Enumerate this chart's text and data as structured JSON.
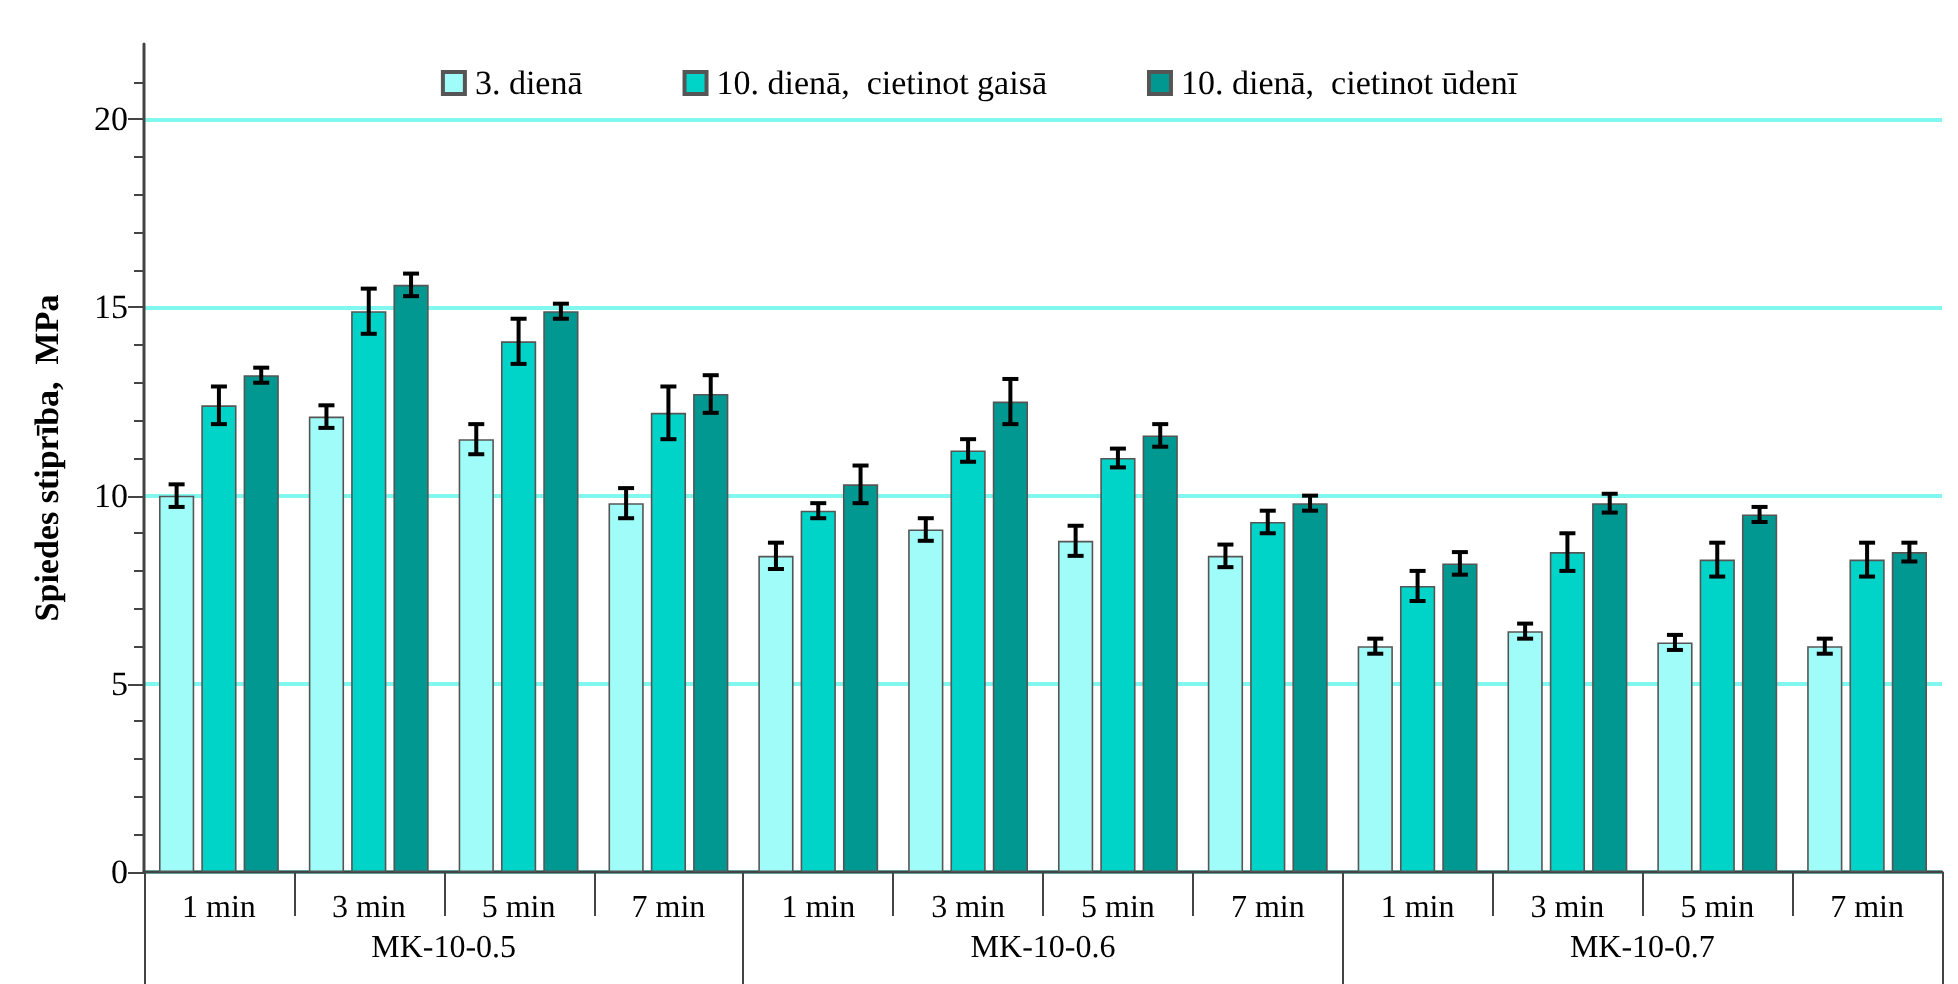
{
  "chart_data": {
    "type": "bar",
    "ylabel": "Spiedes stiprība,  MPa",
    "categories": [
      "1 min",
      "3 min",
      "5 min",
      "7 min",
      "1 min",
      "3 min",
      "5 min",
      "7 min",
      "1 min",
      "3 min",
      "5 min",
      "7 min"
    ],
    "annotations": [
      "MK-10-0.5",
      "MK-10-0.6",
      "MK-10-0.7"
    ],
    "series": [
      {
        "name": "3. dienā",
        "color": "#a0fcf8",
        "values": [
          10.0,
          12.1,
          11.5,
          9.8,
          8.4,
          9.1,
          8.8,
          8.4,
          6.0,
          6.4,
          6.1,
          6.0
        ],
        "errors": [
          0.3,
          0.3,
          0.4,
          0.4,
          0.35,
          0.3,
          0.4,
          0.3,
          0.2,
          0.2,
          0.2,
          0.2
        ]
      },
      {
        "name": "10. dienā,  cietinot gaisā",
        "color": "#00d4c8",
        "values": [
          12.4,
          14.9,
          14.1,
          12.2,
          9.6,
          11.2,
          11.0,
          9.3,
          7.6,
          8.5,
          8.3,
          8.3
        ],
        "errors": [
          0.5,
          0.6,
          0.6,
          0.7,
          0.2,
          0.3,
          0.25,
          0.3,
          0.4,
          0.5,
          0.45,
          0.45
        ]
      },
      {
        "name": "10. dienā,  cietinot ūdenī",
        "color": "#009890",
        "values": [
          13.2,
          15.6,
          14.9,
          12.7,
          10.3,
          12.5,
          11.6,
          9.8,
          8.2,
          9.8,
          9.5,
          8.5
        ],
        "errors": [
          0.2,
          0.3,
          0.2,
          0.5,
          0.5,
          0.6,
          0.3,
          0.2,
          0.3,
          0.25,
          0.2,
          0.25
        ]
      }
    ],
    "ylim": [
      0,
      22
    ],
    "yticks": [
      0,
      5,
      10,
      15,
      20
    ],
    "grid": "y",
    "legend": "top"
  }
}
